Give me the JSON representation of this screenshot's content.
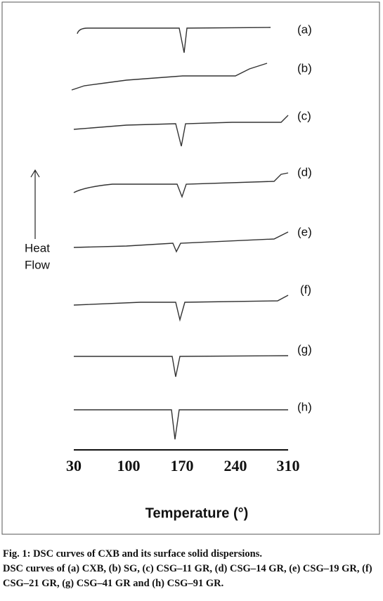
{
  "figure": {
    "curve_labels": [
      "(a)",
      "(b)",
      "(c)",
      "(d)",
      "(e)",
      "(f)",
      "(g)",
      "(h)"
    ],
    "y_label": [
      "Heat",
      "Flow"
    ],
    "x_ticks": [
      30,
      100,
      170,
      240,
      310
    ],
    "x_label": "Temperature (°)"
  },
  "caption": {
    "title": "Fig. 1: DSC curves of CXB and its surface solid dispersions.",
    "text": "DSC curves of (a) CXB, (b) SG, (c) CSG–11 GR, (d) CSG–14 GR, (e) CSG–19 GR, (f) CSG–21 GR, (g) CSG–41 GR and (h) CSG–91 GR."
  }
}
